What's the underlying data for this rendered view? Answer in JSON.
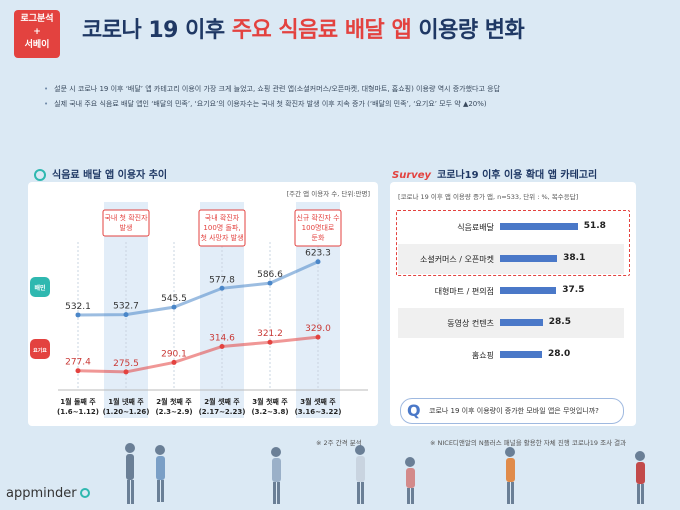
{
  "badge": {
    "line1": "로그분석",
    "line2": "+",
    "line3": "서베이"
  },
  "title": {
    "part1": "코로나 19 이후 ",
    "highlight": "주요 식음료 배달 앱",
    "part2": " 이용량 변화"
  },
  "bullets": [
    "설문 시 코로나 19 이후 ‘배달’ 앱 카테고리 이용이 가장 크게 늘었고, 쇼핑 관련 앱(소셜커머스/오픈마켓, 대형마트, 홈쇼핑) 이용량 역시 증가했다고 응답",
    "실제 국내 주요 식음료 배달 앱인 ‘배달의 민족’, ‘요기요’의 이용자수는 국내 첫 확진자 발생 이후 지속 증가 (‘배달의 민족’, ‘요기요’ 모두 약 ▲20%)"
  ],
  "left_panel": {
    "title": "식음료 배달 앱 이용자 추이",
    "unit": "[주간 앱 이용자 수, 단위:만명]",
    "footnote": "※ 2주 간격 분석"
  },
  "right_panel": {
    "title": "코로나19 이후 이용 확대 앱 카테고리",
    "survey_logo": "Survey",
    "unit": "[코로나 19 이후 앱 이용량 증가 앱, n=533, 단위 : %, 복수응답]",
    "question": "코로나 19 이후 이용량이 증가한 모바일 앱은 무엇입니까?",
    "footnote": "※ NICE디앤알의 N플러스 패널을 활용한 자체 진행 코로나19 조사 결과"
  },
  "chart_data": [
    {
      "type": "line",
      "title": "식음료 배달 앱 이용자 추이",
      "ylabel": "주간 앱 이용자 수 (만명)",
      "categories": [
        [
          "1월 둘째 주",
          "(1.6~1.12)"
        ],
        [
          "1월 넷째 주",
          "(1.20~1.26)"
        ],
        [
          "2월 첫째 주",
          "(2.3~2.9)"
        ],
        [
          "2월 셋째 주",
          "(2.17~2.23)"
        ],
        [
          "3월 첫째 주",
          "(3.2~3.8)"
        ],
        [
          "3월 셋째 주",
          "(3.16~3.22)"
        ]
      ],
      "series": [
        {
          "name": "배달의 민족",
          "color": "#4a86c8",
          "values": [
            532.1,
            532.7,
            545.5,
            577.8,
            586.6,
            623.3
          ]
        },
        {
          "name": "요기요",
          "color": "#e3423f",
          "values": [
            277.4,
            275.5,
            290.1,
            314.6,
            321.2,
            329.0
          ]
        }
      ],
      "annotations": [
        {
          "category_index": 1,
          "text": [
            "국내 첫 확진자",
            "발생"
          ]
        },
        {
          "category_index": 3,
          "text": [
            "국내 확진자",
            "100명 돌파,",
            "첫 사망자 발생"
          ]
        },
        {
          "category_index": 5,
          "text": [
            "신규 확진자 수",
            "100명대로",
            "둔화"
          ]
        }
      ],
      "icons": [
        {
          "name": "배민",
          "color": "#2fb8b0"
        },
        {
          "name": "요기요",
          "color": "#e3423f"
        }
      ]
    },
    {
      "type": "bar",
      "title": "코로나19 이후 이용 확대 앱 카테고리",
      "categories": [
        "식음료배달",
        "소셜커머스 / 오픈마켓",
        "대형마트 / 편의점",
        "동영상 컨텐츠",
        "홈쇼핑"
      ],
      "values": [
        51.8,
        38.1,
        37.5,
        28.5,
        28.0
      ],
      "highlighted": [
        0,
        1
      ],
      "color": "#4a78c8",
      "xlim": [
        0,
        60
      ]
    }
  ],
  "footer": {
    "logo": "appminder"
  }
}
